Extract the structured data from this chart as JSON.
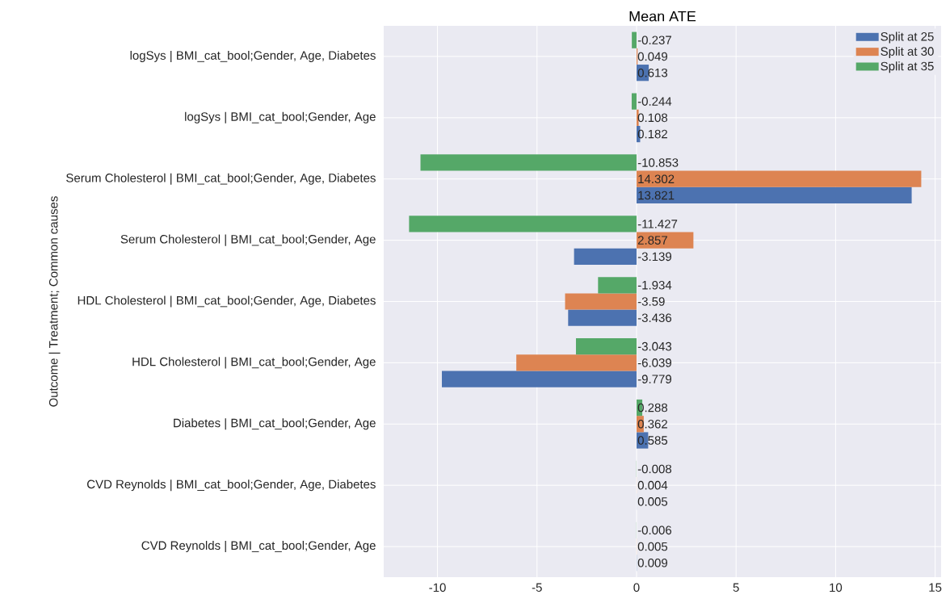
{
  "chart_data": {
    "type": "bar",
    "orientation": "horizontal",
    "title": "Mean ATE",
    "ylabel": "Outcome | Treatment; Common causes",
    "categories": [
      "logSys | BMI_cat_bool;Gender, Age, Diabetes",
      "logSys | BMI_cat_bool;Gender, Age",
      "Serum Cholesterol | BMI_cat_bool;Gender, Age, Diabetes",
      "Serum Cholesterol | BMI_cat_bool;Gender, Age",
      "HDL Cholesterol | BMI_cat_bool;Gender, Age, Diabetes",
      "HDL Cholesterol | BMI_cat_bool;Gender, Age",
      "Diabetes | BMI_cat_bool;Gender, Age",
      "CVD Reynolds | BMI_cat_bool;Gender, Age, Diabetes",
      "CVD Reynolds | BMI_cat_bool;Gender, Age"
    ],
    "series": [
      {
        "name": "Split at 25",
        "color": "#4c72b0",
        "values": [
          0.613,
          0.182,
          13.821,
          -3.139,
          -3.436,
          -9.779,
          0.585,
          0.005,
          0.009
        ]
      },
      {
        "name": "Split at 30",
        "color": "#dd8452",
        "values": [
          0.049,
          0.108,
          14.302,
          2.857,
          -3.59,
          -6.039,
          0.362,
          0.004,
          0.005
        ]
      },
      {
        "name": "Split at 35",
        "color": "#55a868",
        "values": [
          -0.237,
          -0.244,
          -10.853,
          -11.427,
          -1.934,
          -3.043,
          0.288,
          -0.008,
          -0.006
        ]
      }
    ],
    "xlim": [
      -12.7,
      15.3
    ],
    "xticks": [
      -10,
      -5,
      0,
      5,
      10,
      15
    ],
    "data_labels": true,
    "grid": true,
    "legend": "top right"
  }
}
